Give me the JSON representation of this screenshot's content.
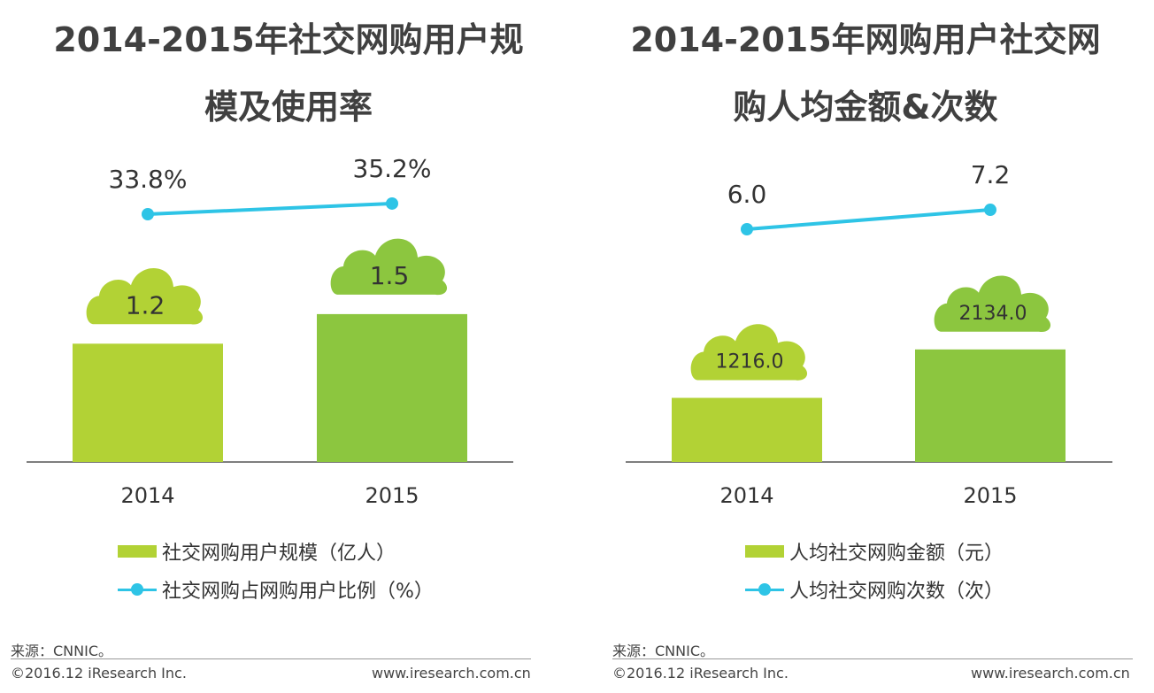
{
  "colors": {
    "bar_2014": "#b2d235",
    "bar_2015": "#8cc63f",
    "cloud_2014": "#b2d235",
    "cloud_2015": "#8cc63f",
    "line": "#2ec4e6",
    "axis": "#7f7f7f"
  },
  "left": {
    "title_line1": "2014-2015年社交网购用户规",
    "title_line2": "模及使用率",
    "legend_bar": "社交网购用户规模（亿人）",
    "legend_line": "社交网购占网购用户比例（%）",
    "source": "来源：CNNIC。",
    "copyright": "©2016.12 iResearch Inc.",
    "website": "www.iresearch.com.cn"
  },
  "right": {
    "title_line1": "2014-2015年网购用户社交网",
    "title_line2": "购人均金额&次数",
    "legend_bar": "人均社交网购金额（元）",
    "legend_line": "人均社交网购次数（次）",
    "source": "来源：CNNIC。",
    "copyright": "©2016.12 iResearch Inc.",
    "website": "www.iresearch.com.cn"
  },
  "chart_data": [
    {
      "type": "bar",
      "title": "2014-2015年社交网购用户规模及使用率",
      "categories": [
        "2014",
        "2015"
      ],
      "series": [
        {
          "name": "社交网购用户规模（亿人）",
          "type": "bar",
          "values": [
            1.2,
            1.5
          ],
          "labels": [
            "1.2",
            "1.5"
          ]
        },
        {
          "name": "社交网购占网购用户比例（%）",
          "type": "line",
          "values": [
            33.8,
            35.2
          ],
          "labels": [
            "33.8%",
            "35.2%"
          ]
        }
      ],
      "legend": "bottom",
      "grid": false
    },
    {
      "type": "bar",
      "title": "2014-2015年网购用户社交网购人均金额&次数",
      "categories": [
        "2014",
        "2015"
      ],
      "series": [
        {
          "name": "人均社交网购金额（元）",
          "type": "bar",
          "values": [
            1216.0,
            2134.0
          ],
          "labels": [
            "1216.0",
            "2134.0"
          ]
        },
        {
          "name": "人均社交网购次数（次）",
          "type": "line",
          "values": [
            6.0,
            7.2
          ],
          "labels": [
            "6.0",
            "7.2"
          ]
        }
      ],
      "legend": "bottom",
      "grid": false
    }
  ]
}
